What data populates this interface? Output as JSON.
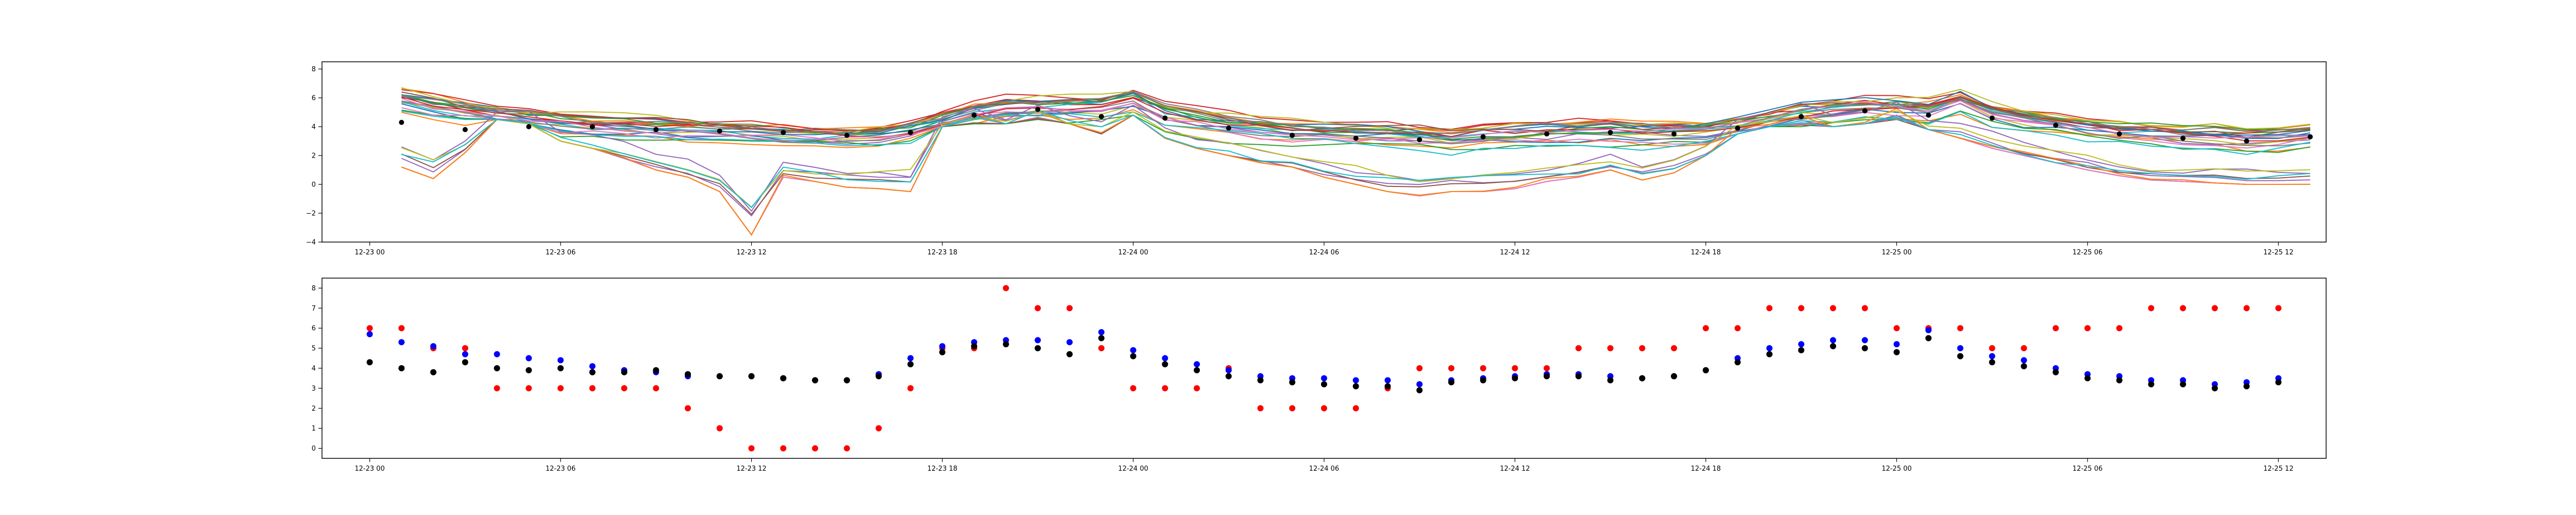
{
  "chart_data": [
    {
      "type": "line",
      "title": "",
      "xlabel": "",
      "ylabel": "",
      "ylim": [
        -4,
        8.5
      ],
      "yticks": [
        -4,
        -2,
        0,
        2,
        4,
        6,
        8
      ],
      "xlim_hours": [
        -1.5,
        61.5
      ],
      "xticks": [
        {
          "hour": 0,
          "label": "12-23 00"
        },
        {
          "hour": 6,
          "label": "12-23 06"
        },
        {
          "hour": 12,
          "label": "12-23 12"
        },
        {
          "hour": 18,
          "label": "12-23 18"
        },
        {
          "hour": 24,
          "label": "12-24 00"
        },
        {
          "hour": 30,
          "label": "12-24 06"
        },
        {
          "hour": 36,
          "label": "12-24 12"
        },
        {
          "hour": 42,
          "label": "12-24 18"
        },
        {
          "hour": 48,
          "label": "12-25 00"
        },
        {
          "hour": 54,
          "label": "12-25 06"
        },
        {
          "hour": 60,
          "label": "12-25 12"
        }
      ],
      "x_hours": [
        1,
        2,
        3,
        4,
        5,
        6,
        7,
        8,
        9,
        10,
        11,
        12,
        13,
        14,
        15,
        16,
        17,
        18,
        19,
        20,
        21,
        22,
        23,
        24,
        25,
        26,
        27,
        28,
        29,
        30,
        31,
        32,
        33,
        34,
        35,
        36,
        37,
        38,
        39,
        40,
        41,
        42,
        43,
        44,
        45,
        46,
        47,
        48,
        49,
        50,
        51,
        52,
        53,
        54,
        55,
        56,
        57,
        58,
        59,
        60,
        61
      ],
      "ensemble": {
        "member_count": 30,
        "colors": [
          "#1f77b4",
          "#ff7f0e",
          "#2ca02c",
          "#d62728",
          "#9467bd",
          "#8c564b",
          "#e377c2",
          "#7f7f7f",
          "#bcbd22",
          "#17becf"
        ],
        "mean_profile": [
          5.9,
          5.4,
          5.1,
          4.8,
          4.5,
          4.3,
          4.1,
          4.0,
          3.9,
          3.8,
          3.7,
          3.6,
          3.5,
          3.4,
          3.4,
          3.5,
          3.8,
          4.4,
          5.0,
          5.3,
          5.4,
          5.4,
          5.4,
          5.9,
          4.9,
          4.5,
          4.2,
          3.9,
          3.7,
          3.6,
          3.5,
          3.5,
          3.4,
          3.2,
          3.4,
          3.5,
          3.6,
          3.7,
          3.7,
          3.6,
          3.6,
          3.7,
          4.0,
          4.5,
          4.9,
          5.1,
          5.3,
          5.3,
          5.2,
          5.9,
          5.0,
          4.6,
          4.3,
          4.0,
          3.7,
          3.6,
          3.4,
          3.4,
          3.2,
          3.3,
          3.5
        ],
        "min_envelope": [
          1.2,
          0.4,
          2.2,
          4.5,
          4.2,
          3.0,
          2.5,
          1.8,
          1.0,
          0.5,
          -0.5,
          -3.5,
          0.5,
          0.2,
          -0.2,
          -0.3,
          -0.5,
          4.0,
          4.2,
          4.2,
          4.5,
          4.2,
          3.5,
          4.8,
          3.2,
          2.5,
          2.0,
          1.5,
          1.2,
          0.5,
          0.0,
          -0.5,
          -0.8,
          -0.5,
          -0.5,
          -0.3,
          0.2,
          0.5,
          1.0,
          0.3,
          0.8,
          2.0,
          3.5,
          4.0,
          4.0,
          4.0,
          4.2,
          4.5,
          3.8,
          3.2,
          2.5,
          2.0,
          1.5,
          1.0,
          0.6,
          0.3,
          0.2,
          0.1,
          0.0,
          0.0,
          0.0
        ],
        "max_envelope": [
          7.2,
          6.8,
          6.5,
          6.5,
          6.4,
          6.3,
          6.2,
          6.0,
          5.9,
          5.8,
          5.6,
          5.5,
          5.4,
          5.3,
          5.3,
          5.4,
          5.8,
          6.2,
          6.5,
          6.6,
          6.8,
          6.8,
          7.0,
          7.5,
          7.0,
          6.8,
          6.6,
          6.4,
          6.2,
          6.0,
          5.9,
          5.8,
          5.7,
          5.6,
          5.6,
          5.7,
          5.8,
          5.9,
          5.9,
          5.9,
          5.9,
          5.9,
          6.0,
          6.3,
          6.6,
          6.8,
          6.9,
          7.0,
          7.2,
          7.7,
          7.0,
          6.8,
          6.6,
          6.4,
          6.2,
          6.0,
          5.8,
          5.7,
          5.6,
          5.6,
          5.8
        ]
      },
      "markers": {
        "color": "#000000",
        "every_n_points": 2,
        "values": [
          4.3,
          4.0,
          3.8,
          4.3,
          4.0,
          3.9,
          4.0,
          3.8,
          3.8,
          3.9,
          3.7,
          3.6,
          3.6,
          3.5,
          3.4,
          3.4,
          3.6,
          4.2,
          4.8,
          5.1,
          5.2,
          5.0,
          4.7,
          5.5,
          4.6,
          4.2,
          3.9,
          3.6,
          3.4,
          3.3,
          3.2,
          3.1,
          3.1,
          2.9,
          3.3,
          3.4,
          3.5,
          3.6,
          3.6,
          3.4,
          3.5,
          3.6,
          3.9,
          4.3,
          4.7,
          4.9,
          5.1,
          5.0,
          4.8,
          5.5,
          4.6,
          4.3,
          4.1,
          3.8,
          3.5,
          3.4,
          3.2,
          3.2,
          3.0,
          3.1,
          3.3
        ]
      }
    },
    {
      "type": "scatter",
      "title": "",
      "xlabel": "",
      "ylabel": "",
      "ylim": [
        -0.5,
        8.5
      ],
      "yticks": [
        0,
        1,
        2,
        3,
        4,
        5,
        6,
        7,
        8
      ],
      "xlim_hours": [
        -1.5,
        61.5
      ],
      "xticks": [
        {
          "hour": 0,
          "label": "12-23 00"
        },
        {
          "hour": 6,
          "label": "12-23 06"
        },
        {
          "hour": 12,
          "label": "12-23 12"
        },
        {
          "hour": 18,
          "label": "12-23 18"
        },
        {
          "hour": 24,
          "label": "12-24 00"
        },
        {
          "hour": 30,
          "label": "12-24 06"
        },
        {
          "hour": 36,
          "label": "12-24 12"
        },
        {
          "hour": 42,
          "label": "12-24 18"
        },
        {
          "hour": 48,
          "label": "12-25 00"
        },
        {
          "hour": 54,
          "label": "12-25 06"
        },
        {
          "hour": 60,
          "label": "12-25 12"
        }
      ],
      "x_hours": [
        0,
        1,
        2,
        3,
        4,
        5,
        6,
        7,
        8,
        9,
        10,
        11,
        12,
        13,
        14,
        15,
        16,
        17,
        18,
        19,
        20,
        21,
        22,
        23,
        24,
        25,
        26,
        27,
        28,
        29,
        30,
        31,
        32,
        33,
        34,
        35,
        36,
        37,
        38,
        39,
        40,
        41,
        42,
        43,
        44,
        45,
        46,
        47,
        48,
        49,
        50,
        51,
        52,
        53,
        54,
        55,
        56,
        57,
        58,
        59,
        60
      ],
      "series": [
        {
          "color": "#ff0000",
          "values": [
            6,
            6,
            5,
            5,
            3,
            3,
            3,
            3,
            3,
            3,
            2,
            1,
            0,
            0,
            0,
            0,
            1,
            3,
            5,
            5,
            8,
            7,
            7,
            5,
            3,
            3,
            3,
            4,
            2,
            2,
            2,
            2,
            3,
            4,
            4,
            4,
            4,
            4,
            5,
            5,
            5,
            5,
            6,
            6,
            7,
            7,
            7,
            7,
            6,
            6,
            6,
            5,
            5,
            6,
            6,
            6,
            7,
            7,
            7,
            7,
            7
          ]
        },
        {
          "color": "#0000ff",
          "values": [
            5.7,
            5.3,
            5.1,
            4.7,
            4.7,
            4.5,
            4.4,
            4.1,
            3.9,
            3.8,
            3.6,
            3.6,
            3.6,
            3.5,
            3.4,
            3.4,
            3.7,
            4.5,
            5.1,
            5.3,
            5.4,
            5.4,
            5.3,
            5.8,
            4.9,
            4.5,
            4.2,
            3.9,
            3.6,
            3.5,
            3.5,
            3.4,
            3.4,
            3.2,
            3.4,
            3.5,
            3.6,
            3.7,
            3.7,
            3.6,
            3.5,
            3.6,
            3.9,
            4.5,
            5.0,
            5.2,
            5.4,
            5.4,
            5.2,
            5.9,
            5.0,
            4.6,
            4.4,
            4.0,
            3.7,
            3.6,
            3.4,
            3.4,
            3.2,
            3.3,
            3.5
          ]
        },
        {
          "color": "#000000",
          "values": [
            4.3,
            4.0,
            3.8,
            4.3,
            4.0,
            3.9,
            4.0,
            3.8,
            3.8,
            3.9,
            3.7,
            3.6,
            3.6,
            3.5,
            3.4,
            3.4,
            3.6,
            4.2,
            4.8,
            5.1,
            5.2,
            5.0,
            4.7,
            5.5,
            4.6,
            4.2,
            3.9,
            3.6,
            3.4,
            3.3,
            3.2,
            3.1,
            3.1,
            2.9,
            3.3,
            3.4,
            3.5,
            3.6,
            3.6,
            3.4,
            3.5,
            3.6,
            3.9,
            4.3,
            4.7,
            4.9,
            5.1,
            5.0,
            4.8,
            5.5,
            4.6,
            4.3,
            4.1,
            3.8,
            3.5,
            3.4,
            3.2,
            3.2,
            3.0,
            3.1,
            3.3
          ]
        }
      ]
    }
  ]
}
